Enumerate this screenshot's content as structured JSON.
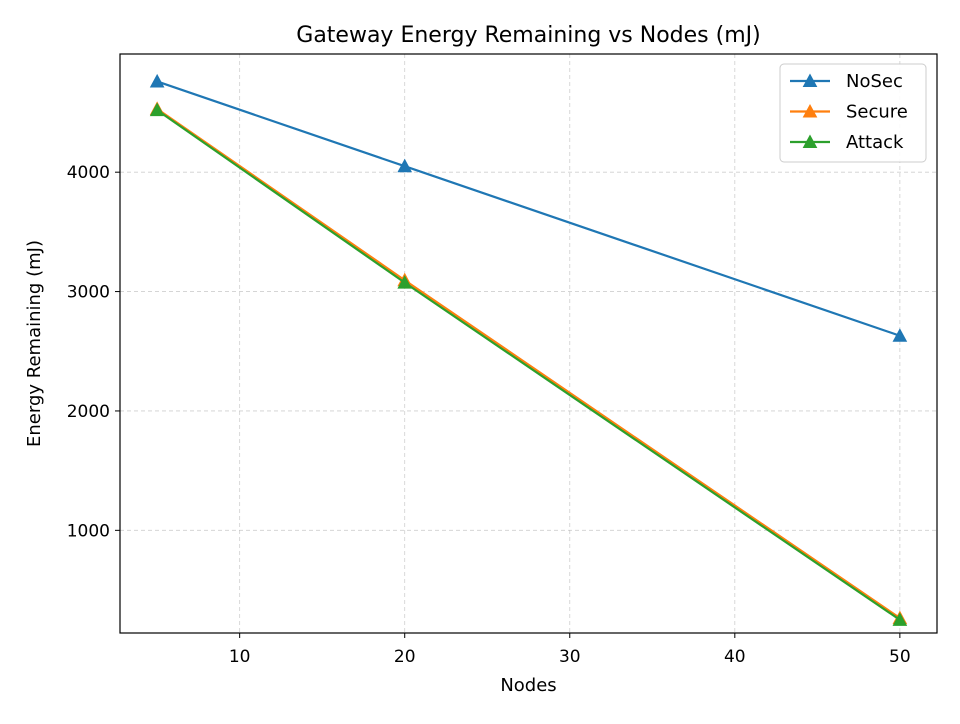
{
  "chart_data": {
    "type": "line",
    "title": "Gateway Energy Remaining vs Nodes (mJ)",
    "xlabel": "Nodes",
    "ylabel": "Energy Remaining (mJ)",
    "x": [
      5,
      20,
      50
    ],
    "xlim": [
      2.75,
      52.25
    ],
    "ylim": [
      140,
      4990
    ],
    "xticks": [
      10,
      20,
      30,
      40,
      50
    ],
    "yticks": [
      1000,
      2000,
      3000,
      4000
    ],
    "grid": true,
    "legend_position": "top-right",
    "marker": "triangle-up",
    "series": [
      {
        "name": "NoSec",
        "color": "#1f77b4",
        "values": [
          4760,
          4050,
          2630
        ]
      },
      {
        "name": "Secure",
        "color": "#ff7f0e",
        "values": [
          4530,
          3095,
          265
        ]
      },
      {
        "name": "Attack",
        "color": "#2ca02c",
        "values": [
          4520,
          3075,
          250
        ]
      }
    ]
  }
}
